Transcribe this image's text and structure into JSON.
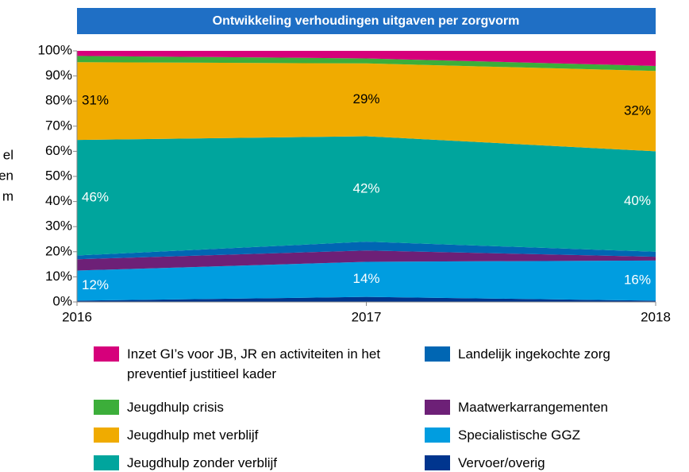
{
  "chart_data": {
    "type": "stacked_area",
    "title": "Ontwikkeling verhoudingen uitgaven per zorgvorm",
    "ylabel_lines": [
      "el",
      "en",
      "m"
    ],
    "x": [
      2016,
      2017,
      2018
    ],
    "xlim": [
      2016,
      2018
    ],
    "xticks": [
      2016,
      2017,
      2018
    ],
    "ylim": [
      0,
      100
    ],
    "yticks": [
      {
        "value": 0,
        "label": "0%"
      },
      {
        "value": 10,
        "label": "10%"
      },
      {
        "value": 20,
        "label": "20%"
      },
      {
        "value": 30,
        "label": "30%"
      },
      {
        "value": 40,
        "label": "40%"
      },
      {
        "value": 50,
        "label": "50%"
      },
      {
        "value": 60,
        "label": "60%"
      },
      {
        "value": 70,
        "label": "70%"
      },
      {
        "value": 80,
        "label": "80%"
      },
      {
        "value": 90,
        "label": "90%"
      },
      {
        "value": 100,
        "label": "100%"
      }
    ],
    "series": [
      {
        "name": "Vervoer/overig",
        "color": "#00358e",
        "values": [
          0.5,
          2,
          0.5
        ]
      },
      {
        "name": "Specialistische GGZ",
        "color": "#009de0",
        "values": [
          12,
          14,
          16
        ],
        "value_labels": [
          "12%",
          "14%",
          "16%"
        ]
      },
      {
        "name": "Maatwerkarrangementen",
        "color": "#6d2077",
        "values": [
          4.5,
          4.5,
          1.5
        ]
      },
      {
        "name": "Landelijk ingekochte zorg",
        "color": "#0066b3",
        "values": [
          1.5,
          3.5,
          2
        ]
      },
      {
        "name": "Jeugdhulp zonder verblijf",
        "color": "#00a59d",
        "values": [
          46,
          42,
          40
        ],
        "value_labels": [
          "46%",
          "42%",
          "40%"
        ]
      },
      {
        "name": "Jeugdhulp met verblijf",
        "color": "#f0ab00",
        "values": [
          31,
          29,
          32
        ],
        "value_labels": [
          "31%",
          "29%",
          "32%"
        ]
      },
      {
        "name": "Jeugdhulp crisis",
        "color": "#3cae3a",
        "values": [
          2.5,
          2,
          2
        ]
      },
      {
        "name": "Inzet GI’s voor JB, JR en activiteiten in het preventief justitieel kader",
        "color": "#d6007b",
        "values": [
          2,
          3,
          6
        ]
      }
    ]
  }
}
